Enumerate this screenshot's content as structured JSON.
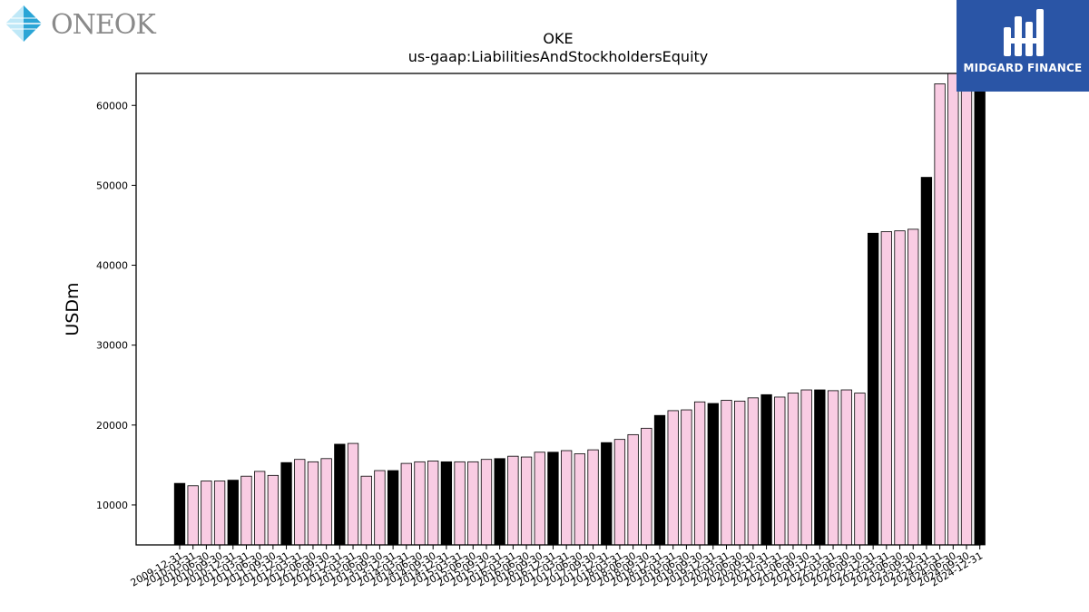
{
  "logos": {
    "left_brand": "ONEOK",
    "right_brand": "MIDGARD FINANCE"
  },
  "chart_data": {
    "type": "bar",
    "title": "OKE",
    "subtitle": "us-gaap:LiabilitiesAndStockholdersEquity",
    "xlabel": "",
    "ylabel": "USDm",
    "ylim": [
      5000,
      64000
    ],
    "yticks": [
      10000,
      20000,
      30000,
      40000,
      50000,
      60000
    ],
    "grid": false,
    "colors": {
      "annual": "#000000",
      "quarterly": "#f9cce3",
      "edge": "#000000"
    },
    "categories": [
      "2009-12-31",
      "2010-03-31",
      "2010-06-30",
      "2010-09-30",
      "2010-12-31",
      "2011-03-31",
      "2011-06-30",
      "2011-09-30",
      "2011-12-31",
      "2012-03-31",
      "2012-06-30",
      "2012-09-30",
      "2012-12-31",
      "2013-03-31",
      "2013-06-30",
      "2013-09-30",
      "2013-12-31",
      "2014-03-31",
      "2014-06-30",
      "2014-09-30",
      "2014-12-31",
      "2015-03-31",
      "2015-06-30",
      "2015-09-30",
      "2015-12-31",
      "2016-03-31",
      "2016-06-30",
      "2016-09-30",
      "2016-12-31",
      "2017-03-31",
      "2017-06-30",
      "2017-09-30",
      "2017-12-31",
      "2018-03-31",
      "2018-06-30",
      "2018-09-30",
      "2018-12-31",
      "2019-03-31",
      "2019-06-30",
      "2019-09-30",
      "2019-12-31",
      "2020-03-31",
      "2020-06-30",
      "2020-09-30",
      "2020-12-31",
      "2021-03-31",
      "2021-06-30",
      "2021-09-30",
      "2021-12-31",
      "2022-03-31",
      "2022-06-30",
      "2022-09-30",
      "2022-12-31",
      "2023-03-31",
      "2023-06-30",
      "2023-09-30",
      "2023-12-31",
      "2024-03-31",
      "2024-06-30",
      "2024-09-30",
      "2024-12-31"
    ],
    "values": [
      12700,
      12400,
      13000,
      13000,
      13100,
      13600,
      14200,
      13700,
      15300,
      15700,
      15400,
      15800,
      17600,
      17700,
      13600,
      14300,
      14300,
      15200,
      15400,
      15500,
      15400,
      15400,
      15400,
      15700,
      15800,
      16100,
      16000,
      16600,
      16600,
      16800,
      16400,
      16900,
      17800,
      18200,
      18800,
      19600,
      21200,
      21800,
      21900,
      22900,
      22700,
      23100,
      23000,
      23400,
      23800,
      23500,
      24000,
      24400,
      24400,
      24300,
      24400,
      24000,
      44000,
      44200,
      44300,
      44500,
      51000,
      62700,
      64000,
      64000,
      64000
    ],
    "annual": [
      true,
      false,
      false,
      false,
      true,
      false,
      false,
      false,
      true,
      false,
      false,
      false,
      true,
      false,
      false,
      false,
      true,
      false,
      false,
      false,
      true,
      false,
      false,
      false,
      true,
      false,
      false,
      false,
      true,
      false,
      false,
      false,
      true,
      false,
      false,
      false,
      true,
      false,
      false,
      false,
      true,
      false,
      false,
      false,
      true,
      false,
      false,
      false,
      true,
      false,
      false,
      false,
      true,
      false,
      false,
      false,
      true,
      false,
      false,
      false,
      true
    ]
  }
}
